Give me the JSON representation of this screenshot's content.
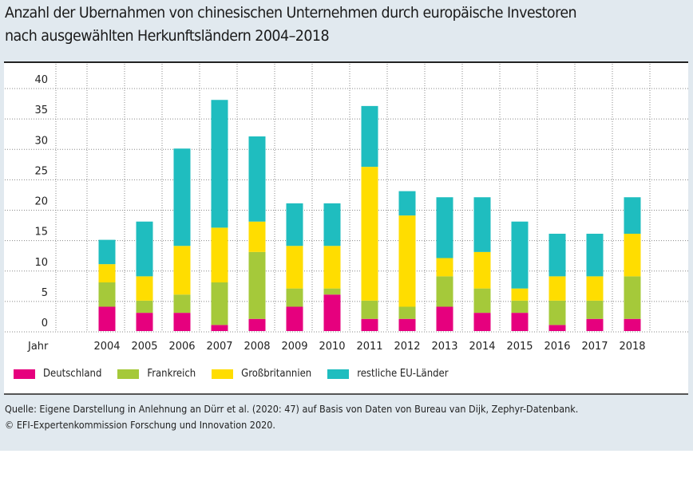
{
  "title_line1": "Anzahl der Ubernahmen von chinesischen Unternehmen durch europäische Investoren",
  "title_line2": "nach ausgewählten Herkunftsländern 2004–2018",
  "chart_data": {
    "type": "bar",
    "stacked": true,
    "xlabel": "Jahr",
    "categories": [
      "2004",
      "2005",
      "2006",
      "2007",
      "2008",
      "2009",
      "2010",
      "2011",
      "2012",
      "2013",
      "2014",
      "2015",
      "2016",
      "2017",
      "2018"
    ],
    "yticks": [
      "0",
      "5",
      "10",
      "15",
      "20",
      "25",
      "30",
      "35",
      "40"
    ],
    "ylim": [
      0,
      40
    ],
    "grid": true,
    "legend_position": "bottom",
    "series": [
      {
        "name": "Deutschland",
        "color": "#e6007e",
        "values": [
          4,
          3,
          3,
          1,
          2,
          4,
          6,
          2,
          2,
          4,
          3,
          3,
          1,
          2,
          2
        ]
      },
      {
        "name": "Frankreich",
        "color": "#a5c93a",
        "values": [
          4,
          2,
          3,
          7,
          11,
          3,
          1,
          3,
          2,
          5,
          4,
          2,
          4,
          3,
          7
        ]
      },
      {
        "name": "Großbritannien",
        "color": "#ffdd00",
        "values": [
          3,
          4,
          8,
          9,
          5,
          7,
          7,
          22,
          15,
          3,
          6,
          2,
          4,
          4,
          7
        ]
      },
      {
        "name": "restliche EU-Länder",
        "color": "#1fbdbf",
        "values": [
          4,
          9,
          16,
          21,
          14,
          7,
          7,
          10,
          4,
          10,
          9,
          11,
          7,
          7,
          6
        ]
      }
    ]
  },
  "footer": {
    "source": "Quelle: Eigene Darstellung in Anlehnung an Dürr et al. (2020: 47) auf Basis von Daten von Bureau van Dijk, Zephyr-Datenbank.",
    "copyright": "© EFI-Expertenkommission Forschung und Innovation 2020."
  }
}
